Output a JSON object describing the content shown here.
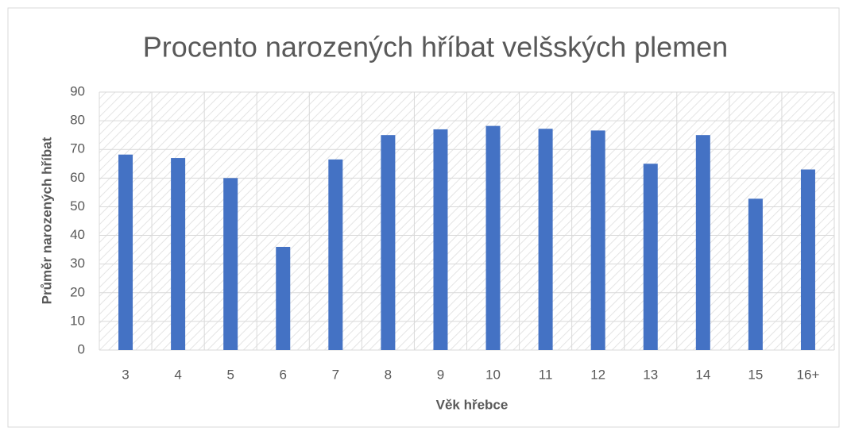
{
  "chart_data": {
    "type": "bar",
    "title": "Procento narozených hříbat velšských plemen",
    "x_label": "Věk hřebce",
    "y_label": "Průměr narozených hříbat",
    "categories": [
      "3",
      "4",
      "5",
      "6",
      "7",
      "8",
      "9",
      "10",
      "11",
      "12",
      "13",
      "14",
      "15",
      "16+"
    ],
    "values": [
      68.2,
      67,
      60,
      36,
      66.5,
      75,
      77,
      78.2,
      77.2,
      76.6,
      65,
      75,
      52.8,
      63
    ],
    "color": "#4472c4",
    "ylim": [
      0,
      90
    ],
    "yticks": [
      0,
      10,
      20,
      30,
      40,
      50,
      60,
      70,
      80,
      90
    ],
    "grid": true
  }
}
